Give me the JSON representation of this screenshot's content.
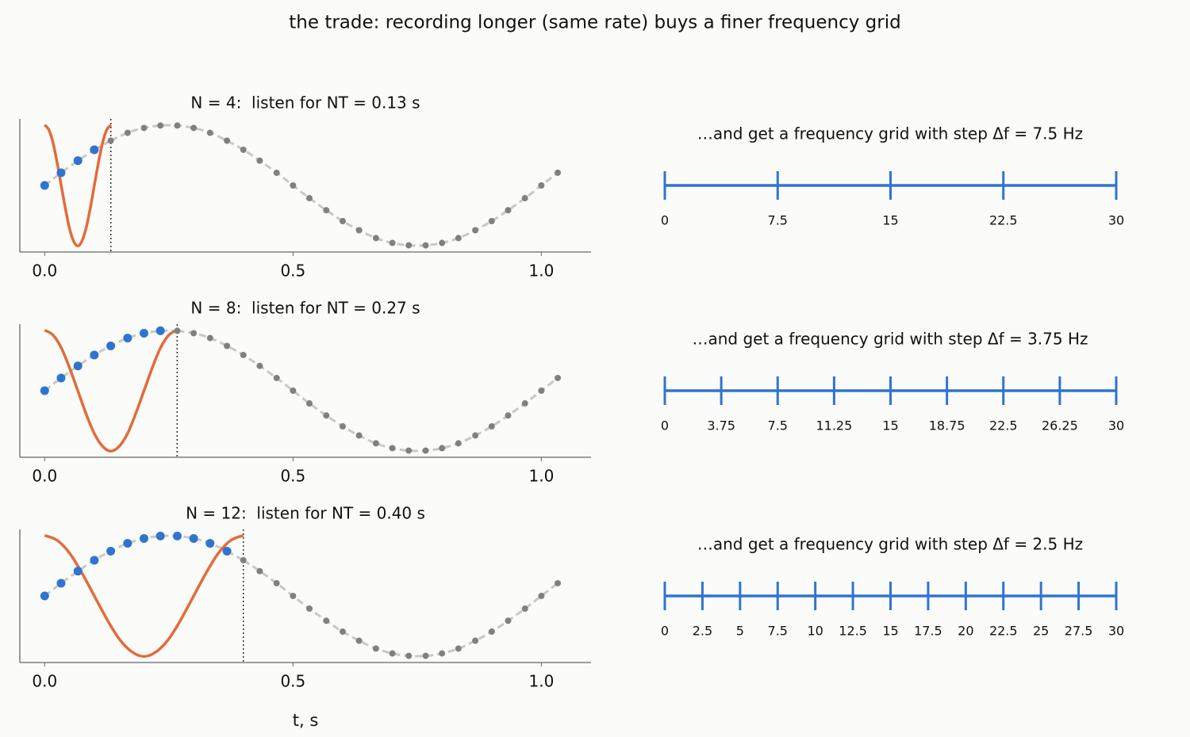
{
  "title": "the trade: recording longer (same rate) buys a finer frequency grid",
  "chart_data": [
    {
      "type": "line",
      "title": "N = 4:  listen for NT = 0.13 s",
      "xlim": [
        -0.05,
        1.1
      ],
      "ylim": [
        -1.1,
        1.1
      ],
      "xticks": [
        {
          "value": 0,
          "label": "0.0"
        },
        {
          "value": 0.5,
          "label": "0.5"
        },
        {
          "value": 1,
          "label": "1.0"
        }
      ],
      "vline": 0.1333,
      "series": [
        {
          "marker_color": "#2f74d0",
          "line_color": "#c8c8c8",
          "line_style": "dashed",
          "x": [
            0,
            0.033,
            0.067,
            0.1
          ],
          "values": [
            0,
            0.21,
            0.41,
            0.59
          ]
        },
        {
          "marker_color": "#808080",
          "line_color": "#c8c8c8",
          "line_style": "dashed",
          "x": [
            0.133,
            0.167,
            0.2,
            0.233,
            0.267,
            0.3,
            0.333,
            0.367,
            0.4,
            0.433,
            0.467,
            0.5,
            0.533,
            0.567,
            0.6,
            0.633,
            0.667,
            0.7,
            0.733,
            0.767,
            0.8,
            0.833,
            0.867,
            0.9,
            0.933,
            0.967,
            1,
            1.033
          ],
          "values": [
            0.74,
            0.87,
            0.95,
            0.99,
            0.99,
            0.95,
            0.87,
            0.74,
            0.59,
            0.41,
            0.21,
            0,
            -0.21,
            -0.41,
            -0.59,
            -0.74,
            -0.87,
            -0.95,
            -0.99,
            -0.99,
            -0.95,
            -0.87,
            -0.74,
            -0.59,
            -0.41,
            -0.21,
            0,
            0.21
          ]
        },
        {
          "line_color": "#e36b3b",
          "line_style": "solid",
          "x": [
            0,
            0.0083,
            0.0167,
            0.025,
            0.0333,
            0.0417,
            0.05,
            0.0583,
            0.0667,
            0.075,
            0.0833,
            0.0917,
            0.1,
            0.1083,
            0.1167,
            0.125,
            0.1333
          ],
          "values": [
            1,
            0.92,
            0.71,
            0.38,
            0,
            -0.38,
            -0.71,
            -0.92,
            -1,
            -0.92,
            -0.71,
            -0.38,
            0,
            0.38,
            0.71,
            0.92,
            1
          ]
        }
      ]
    },
    {
      "type": "numberline",
      "title": "…and get a frequency grid with step Δf = 7.5 Hz",
      "xlim": [
        0,
        30
      ],
      "xticks": [
        0,
        7.5,
        15,
        22.5,
        30
      ],
      "color": "#2f74d0"
    },
    {
      "type": "line",
      "title": "N = 8:  listen for NT = 0.27 s",
      "xlim": [
        -0.05,
        1.1
      ],
      "ylim": [
        -1.1,
        1.1
      ],
      "xticks": [
        {
          "value": 0,
          "label": "0.0"
        },
        {
          "value": 0.5,
          "label": "0.5"
        },
        {
          "value": 1,
          "label": "1.0"
        }
      ],
      "vline": 0.2667,
      "series": [
        {
          "marker_color": "#2f74d0",
          "line_color": "#c8c8c8",
          "line_style": "dashed",
          "x": [
            0,
            0.033,
            0.067,
            0.1,
            0.133,
            0.167,
            0.2,
            0.233
          ],
          "values": [
            0,
            0.21,
            0.41,
            0.59,
            0.74,
            0.87,
            0.95,
            0.99
          ]
        },
        {
          "marker_color": "#808080",
          "line_color": "#c8c8c8",
          "line_style": "dashed",
          "x": [
            0.267,
            0.3,
            0.333,
            0.367,
            0.4,
            0.433,
            0.467,
            0.5,
            0.533,
            0.567,
            0.6,
            0.633,
            0.667,
            0.7,
            0.733,
            0.767,
            0.8,
            0.833,
            0.867,
            0.9,
            0.933,
            0.967,
            1,
            1.033
          ],
          "values": [
            0.99,
            0.95,
            0.87,
            0.74,
            0.59,
            0.41,
            0.21,
            0,
            -0.21,
            -0.41,
            -0.59,
            -0.74,
            -0.87,
            -0.95,
            -0.99,
            -0.99,
            -0.95,
            -0.87,
            -0.74,
            -0.59,
            -0.41,
            -0.21,
            0,
            0.21
          ]
        },
        {
          "line_color": "#e36b3b",
          "line_style": "solid",
          "x": [
            0,
            0.0167,
            0.0333,
            0.05,
            0.0667,
            0.0833,
            0.1,
            0.1167,
            0.1333,
            0.15,
            0.1667,
            0.1833,
            0.2,
            0.2167,
            0.2333,
            0.25,
            0.2667
          ],
          "values": [
            1,
            0.92,
            0.71,
            0.38,
            0,
            -0.38,
            -0.71,
            -0.92,
            -1,
            -0.92,
            -0.71,
            -0.38,
            0,
            0.38,
            0.71,
            0.92,
            1
          ]
        }
      ]
    },
    {
      "type": "numberline",
      "title": "…and get a frequency grid with step Δf = 3.75 Hz",
      "xlim": [
        0,
        30
      ],
      "xticks": [
        0,
        3.75,
        7.5,
        11.25,
        15,
        18.75,
        22.5,
        26.25,
        30
      ],
      "color": "#2f74d0"
    },
    {
      "type": "line",
      "title": "N = 12:  listen for NT = 0.40 s",
      "xlabel": "t, s",
      "xlim": [
        -0.05,
        1.1
      ],
      "ylim": [
        -1.1,
        1.1
      ],
      "xticks": [
        {
          "value": 0,
          "label": "0.0"
        },
        {
          "value": 0.5,
          "label": "0.5"
        },
        {
          "value": 1,
          "label": "1.0"
        }
      ],
      "vline": 0.4,
      "series": [
        {
          "marker_color": "#2f74d0",
          "line_color": "#c8c8c8",
          "line_style": "dashed",
          "x": [
            0,
            0.033,
            0.067,
            0.1,
            0.133,
            0.167,
            0.2,
            0.233,
            0.267,
            0.3,
            0.333,
            0.367
          ],
          "values": [
            0,
            0.21,
            0.41,
            0.59,
            0.74,
            0.87,
            0.95,
            0.99,
            0.99,
            0.95,
            0.87,
            0.74
          ]
        },
        {
          "marker_color": "#808080",
          "line_color": "#c8c8c8",
          "line_style": "dashed",
          "x": [
            0.4,
            0.433,
            0.467,
            0.5,
            0.533,
            0.567,
            0.6,
            0.633,
            0.667,
            0.7,
            0.733,
            0.767,
            0.8,
            0.833,
            0.867,
            0.9,
            0.933,
            0.967,
            1,
            1.033
          ],
          "values": [
            0.59,
            0.41,
            0.21,
            0,
            -0.21,
            -0.41,
            -0.59,
            -0.74,
            -0.87,
            -0.95,
            -0.99,
            -0.99,
            -0.95,
            -0.87,
            -0.74,
            -0.59,
            -0.41,
            -0.21,
            0,
            0.21
          ]
        },
        {
          "line_color": "#e36b3b",
          "line_style": "solid",
          "x": [
            0,
            0.025,
            0.05,
            0.075,
            0.1,
            0.125,
            0.15,
            0.175,
            0.2,
            0.225,
            0.25,
            0.275,
            0.3,
            0.325,
            0.35,
            0.375,
            0.4
          ],
          "values": [
            1,
            0.92,
            0.71,
            0.38,
            0,
            -0.38,
            -0.71,
            -0.92,
            -1,
            -0.92,
            -0.71,
            -0.38,
            0,
            0.38,
            0.71,
            0.92,
            1
          ]
        }
      ]
    },
    {
      "type": "numberline",
      "title": "…and get a frequency grid with step Δf = 2.5 Hz",
      "xlim": [
        0,
        30
      ],
      "xticks": [
        0,
        2.5,
        5,
        7.5,
        10,
        12.5,
        15,
        17.5,
        20,
        22.5,
        25,
        27.5,
        30
      ],
      "color": "#2f74d0"
    }
  ]
}
